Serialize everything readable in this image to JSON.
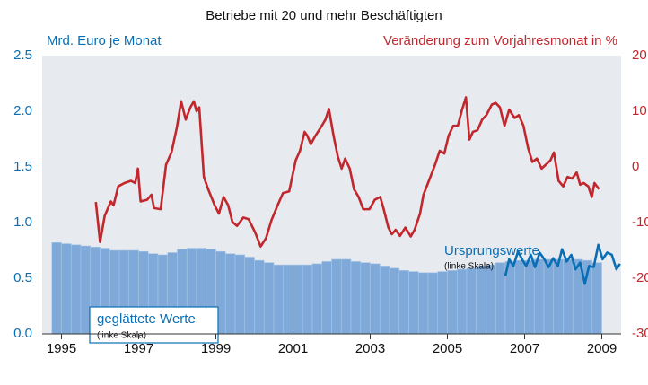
{
  "chart_data": {
    "type": "bar",
    "title": "Betriebe mit 20 und mehr Beschäftigten",
    "y_label": "Mrd. Euro je Monat",
    "y2_label": "Veränderung zum Vorjahresmonat in %",
    "xlim": [
      1994.5,
      2009.5
    ],
    "xticks": [
      1995,
      1997,
      1999,
      2001,
      2003,
      2005,
      2007,
      2009
    ],
    "ylim": [
      0,
      2.5
    ],
    "yticks": [
      {
        "value": 0,
        "label": "0.0"
      },
      0.5,
      {
        "value": 1,
        "label": "1.0"
      },
      1.5,
      {
        "value": 2,
        "label": "2.0"
      },
      2.5
    ],
    "y2lim": [
      -30,
      20
    ],
    "y2ticks": [
      -30,
      -20,
      -10,
      0,
      10,
      20
    ],
    "series": [
      {
        "name": "geglättete Werte",
        "type": "bar",
        "color": "#7ea9d8",
        "x": [
          1994.875,
          1995.125,
          1995.375,
          1995.625,
          1995.875,
          1996.125,
          1996.375,
          1996.625,
          1996.875,
          1997.125,
          1997.375,
          1997.625,
          1997.875,
          1998.125,
          1998.375,
          1998.625,
          1998.875,
          1999.125,
          1999.375,
          1999.625,
          1999.875,
          2000.125,
          2000.375,
          2000.625,
          2000.875,
          2001.125,
          2001.375,
          2001.625,
          2001.875,
          2002.125,
          2002.375,
          2002.625,
          2002.875,
          2003.125,
          2003.375,
          2003.625,
          2003.875,
          2004.125,
          2004.375,
          2004.625,
          2004.875,
          2005.125,
          2005.375,
          2005.625,
          2005.875,
          2006.125,
          2006.375,
          2006.625,
          2006.875,
          2007.125,
          2007.375,
          2007.625,
          2007.875,
          2008.125,
          2008.375,
          2008.625,
          2008.875
        ],
        "values": [
          0.82,
          0.81,
          0.8,
          0.79,
          0.78,
          0.77,
          0.75,
          0.75,
          0.75,
          0.74,
          0.72,
          0.71,
          0.73,
          0.76,
          0.77,
          0.77,
          0.76,
          0.74,
          0.72,
          0.71,
          0.69,
          0.66,
          0.64,
          0.62,
          0.62,
          0.62,
          0.62,
          0.63,
          0.65,
          0.67,
          0.67,
          0.65,
          0.64,
          0.63,
          0.61,
          0.59,
          0.57,
          0.56,
          0.55,
          0.55,
          0.56,
          0.57,
          0.58,
          0.59,
          0.61,
          0.62,
          0.64,
          0.65,
          0.66,
          0.66,
          0.67,
          0.67,
          0.67,
          0.67,
          0.67,
          0.66,
          0.64
        ]
      },
      {
        "name": "Ursprungswerte",
        "type": "line",
        "color": "#0a6eb4",
        "x": [
          2006.5,
          2006.6,
          2006.71,
          2006.83,
          2006.95,
          2007.04,
          2007.16,
          2007.27,
          2007.39,
          2007.51,
          2007.62,
          2007.74,
          2007.86,
          2007.97,
          2008.09,
          2008.21,
          2008.32,
          2008.44,
          2008.56,
          2008.67,
          2008.79,
          2008.91,
          2009.02,
          2009.14,
          2009.26,
          2009.38,
          2009.47
        ],
        "values": [
          0.52,
          0.67,
          0.61,
          0.74,
          0.66,
          0.61,
          0.71,
          0.6,
          0.73,
          0.67,
          0.6,
          0.68,
          0.61,
          0.76,
          0.65,
          0.71,
          0.58,
          0.64,
          0.45,
          0.61,
          0.6,
          0.8,
          0.67,
          0.73,
          0.71,
          0.58,
          0.63
        ]
      },
      {
        "type": "line",
        "axis": "y2",
        "color": "#c1272d",
        "x": [
          1995.89,
          1996.0,
          1996.12,
          1996.28,
          1996.35,
          1996.47,
          1996.63,
          1996.8,
          1996.91,
          1996.98,
          1997.05,
          1997.22,
          1997.33,
          1997.4,
          1997.57,
          1997.71,
          1997.85,
          1997.99,
          1998.1,
          1998.22,
          1998.34,
          1998.43,
          1998.5,
          1998.57,
          1998.69,
          1998.8,
          1998.97,
          1999.08,
          1999.2,
          1999.32,
          1999.43,
          1999.55,
          1999.71,
          1999.85,
          2000.02,
          2000.16,
          2000.3,
          2000.44,
          2000.6,
          2000.74,
          2000.9,
          2001.07,
          2001.18,
          2001.3,
          2001.37,
          2001.46,
          2001.58,
          2001.72,
          2001.84,
          2001.93,
          2002.05,
          2002.16,
          2002.26,
          2002.35,
          2002.47,
          2002.58,
          2002.7,
          2002.82,
          2002.98,
          2003.12,
          2003.26,
          2003.35,
          2003.47,
          2003.56,
          2003.66,
          2003.77,
          2003.91,
          2004.05,
          2004.15,
          2004.29,
          2004.38,
          2004.52,
          2004.68,
          2004.8,
          2004.92,
          2005.03,
          2005.15,
          2005.27,
          2005.38,
          2005.48,
          2005.57,
          2005.66,
          2005.78,
          2005.9,
          2006.01,
          2006.15,
          2006.25,
          2006.36,
          2006.48,
          2006.6,
          2006.74,
          2006.85,
          2006.97,
          2007.09,
          2007.2,
          2007.32,
          2007.44,
          2007.55,
          2007.67,
          2007.76,
          2007.88,
          2008.0,
          2008.11,
          2008.23,
          2008.35,
          2008.44,
          2008.53,
          2008.65,
          2008.74,
          2008.81,
          2008.93
        ],
        "values": [
          -6.3,
          -13.5,
          -8.8,
          -6.2,
          -6.9,
          -3.5,
          -2.9,
          -2.5,
          -2.9,
          -0.3,
          -6.2,
          -5.9,
          -5.0,
          -7.4,
          -7.6,
          0.4,
          2.6,
          7.1,
          11.8,
          8.5,
          10.7,
          11.8,
          10.0,
          10.7,
          -1.8,
          -4.0,
          -6.9,
          -8.4,
          -5.4,
          -6.9,
          -9.9,
          -10.6,
          -9.1,
          -9.4,
          -11.8,
          -14.3,
          -12.8,
          -9.6,
          -6.9,
          -4.7,
          -4.4,
          1.2,
          2.9,
          6.3,
          5.6,
          4.1,
          5.6,
          7.1,
          8.5,
          10.4,
          5.6,
          1.9,
          -0.3,
          1.5,
          -0.3,
          -4.0,
          -5.4,
          -7.6,
          -7.6,
          -5.9,
          -5.4,
          -7.6,
          -10.9,
          -12.1,
          -11.3,
          -12.4,
          -10.9,
          -12.5,
          -11.3,
          -8.4,
          -5.0,
          -2.5,
          0.4,
          2.9,
          2.4,
          5.6,
          7.4,
          7.4,
          10.3,
          12.5,
          4.9,
          6.3,
          6.6,
          8.5,
          9.3,
          11.2,
          11.5,
          10.7,
          7.4,
          10.3,
          8.8,
          9.3,
          7.4,
          3.4,
          0.9,
          1.5,
          -0.3,
          0.4,
          1.2,
          2.6,
          -2.5,
          -3.5,
          -1.8,
          -2.1,
          -1.0,
          -3.2,
          -2.9,
          -3.5,
          -5.4,
          -2.9,
          -4.0
        ]
      }
    ],
    "annotations": [
      "(linke Skala)",
      "(linke Skala)"
    ]
  }
}
